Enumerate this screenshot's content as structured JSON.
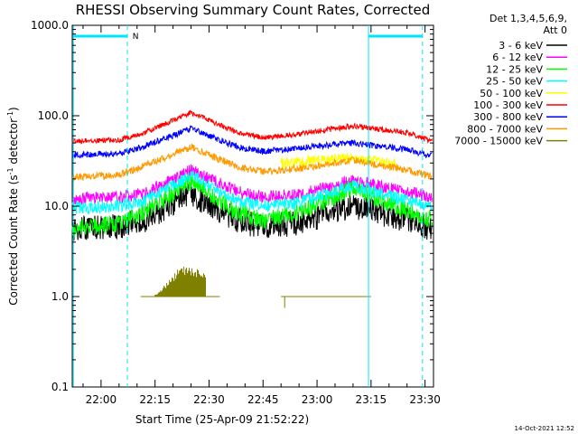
{
  "chart_data": {
    "type": "line",
    "title": "RHESSI Observing Summary Count Rates, Corrected",
    "xlabel": "Start Time (25-Apr-09 21:52:22)",
    "ylabel_main": "Corrected Count Rate (s",
    "ylabel_sup1": "-1",
    "ylabel_mid": " detector",
    "ylabel_sup2": "-1",
    "ylabel_end": ")",
    "yscale": "log",
    "ylim": [
      0.1,
      1000
    ],
    "xlim": [
      "21:52",
      "23:32"
    ],
    "x_ticks": [
      "22:00",
      "22:15",
      "22:30",
      "22:45",
      "23:00",
      "23:15",
      "23:30"
    ],
    "y_ticks": [
      "1000.0",
      "100.0",
      "10.0",
      "1.0",
      "0.1"
    ],
    "legend_header": [
      "Det 1,3,4,5,6,9,",
      "Att 0"
    ],
    "legend_position": "right",
    "timestamp": "14-Oct-2021 12:52",
    "flag_label": "N",
    "series": [
      {
        "name": "3 - 6 keV",
        "color": "#000000",
        "x": [
          "21:52",
          "22:05",
          "22:12",
          "22:25",
          "22:38",
          "22:45",
          "22:55",
          "23:10",
          "23:25",
          "23:32"
        ],
        "values": [
          5.5,
          6.0,
          7.0,
          13.5,
          7.0,
          5.8,
          6.5,
          10.0,
          7.0,
          5.5
        ]
      },
      {
        "name": "6 - 12 keV",
        "color": "#ff00ff",
        "x": [
          "21:52",
          "22:05",
          "22:12",
          "22:25",
          "22:38",
          "22:45",
          "22:55",
          "23:10",
          "23:25",
          "23:32"
        ],
        "values": [
          12.0,
          12.5,
          14.0,
          25.0,
          14.5,
          12.5,
          13.5,
          19.0,
          14.5,
          12.5
        ]
      },
      {
        "name": "12 - 25 keV",
        "color": "#00ff00",
        "x": [
          "21:52",
          "22:05",
          "22:12",
          "22:25",
          "22:38",
          "22:45",
          "22:55",
          "23:10",
          "23:25",
          "23:32"
        ],
        "values": [
          5.5,
          6.5,
          8.5,
          19.0,
          8.5,
          7.0,
          8.5,
          16.0,
          9.0,
          7.0
        ]
      },
      {
        "name": "25 - 50 keV",
        "color": "#00ffff",
        "x": [
          "21:52",
          "22:05",
          "22:12",
          "22:25",
          "22:38",
          "22:45",
          "22:55",
          "23:10",
          "23:25",
          "23:32"
        ],
        "values": [
          9.5,
          10.0,
          11.5,
          22.0,
          11.5,
          10.0,
          11.0,
          17.0,
          11.5,
          9.5
        ]
      },
      {
        "name": "50 - 100 keV",
        "color": "#ffff00",
        "x": [
          "22:50",
          "23:00",
          "23:08",
          "23:15",
          "23:22"
        ],
        "values": [
          30.0,
          32.0,
          34.0,
          32.0,
          29.0
        ]
      },
      {
        "name": "100 - 300 keV",
        "color": "#ff0000",
        "x": [
          "21:52",
          "22:05",
          "22:12",
          "22:25",
          "22:38",
          "22:45",
          "22:55",
          "23:10",
          "23:25",
          "23:32"
        ],
        "values": [
          52.0,
          54.0,
          65.0,
          108.0,
          65.0,
          57.0,
          63.0,
          77.0,
          65.0,
          52.0
        ]
      },
      {
        "name": "300 - 800 keV",
        "color": "#0000ff",
        "x": [
          "21:52",
          "22:05",
          "22:12",
          "22:25",
          "22:38",
          "22:45",
          "22:55",
          "23:10",
          "23:25",
          "23:32"
        ],
        "values": [
          37.0,
          38.0,
          46.0,
          72.0,
          45.0,
          40.0,
          44.0,
          50.0,
          42.0,
          36.0
        ]
      },
      {
        "name": "800 - 7000 keV",
        "color": "#ff9900",
        "x": [
          "21:52",
          "22:05",
          "22:12",
          "22:25",
          "22:38",
          "22:45",
          "22:55",
          "23:10",
          "23:25",
          "23:32"
        ],
        "values": [
          21.0,
          22.0,
          28.0,
          45.0,
          27.0,
          24.0,
          26.0,
          32.0,
          25.0,
          21.0
        ]
      },
      {
        "name": "7000 - 15000 keV",
        "color": "#808000",
        "x": [
          "22:11",
          "22:15",
          "22:22",
          "22:29",
          "22:33",
          "22:50",
          "23:15"
        ],
        "values": [
          1.0,
          1.0,
          2.2,
          2.0,
          1.0,
          0.9,
          1.0
        ]
      }
    ]
  }
}
